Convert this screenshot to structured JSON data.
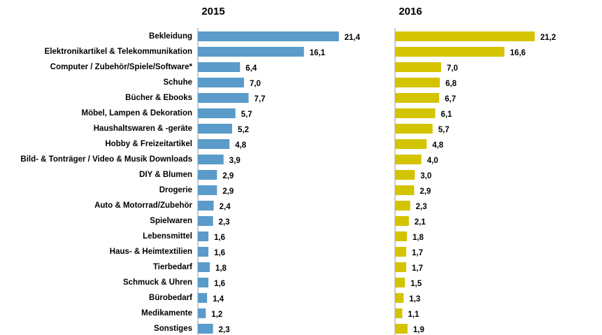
{
  "chart_data": {
    "type": "bar",
    "orientation": "horizontal",
    "categories": [
      "Bekleidung",
      "Elektronikartikel & Telekommunikation",
      "Computer / Zubehör/Spiele/Software*",
      "Schuhe",
      "Bücher & Ebooks",
      "Möbel, Lampen & Dekoration",
      "Haushaltswaren & -geräte",
      "Hobby & Freizeitartikel",
      "Bild- & Tonträger / Video & Musik Downloads",
      "DIY & Blumen",
      "Drogerie",
      "Auto & Motorrad/Zubehör",
      "Spielwaren",
      "Lebensmittel",
      "Haus- & Heimtextilien",
      "Tierbedarf",
      "Schmuck & Uhren",
      "Bürobedarf",
      "Medikamente",
      "Sonstiges"
    ],
    "series": [
      {
        "name": "2015",
        "color": "#5a9bc9",
        "values": [
          21.4,
          16.1,
          6.4,
          7.0,
          7.7,
          5.7,
          5.2,
          4.8,
          3.9,
          2.9,
          2.9,
          2.4,
          2.3,
          1.6,
          1.6,
          1.8,
          1.6,
          1.4,
          1.2,
          2.3
        ],
        "value_labels": [
          "21,4",
          "16,1",
          "6,4",
          "7,0",
          "7,7",
          "5,7",
          "5,2",
          "4,8",
          "3,9",
          "2,9",
          "2,9",
          "2,4",
          "2,3",
          "1,6",
          "1,6",
          "1,8",
          "1,6",
          "1,4",
          "1,2",
          "2,3"
        ]
      },
      {
        "name": "2016",
        "color": "#d4c400",
        "values": [
          21.2,
          16.6,
          7.0,
          6.8,
          6.7,
          6.1,
          5.7,
          4.8,
          4.0,
          3.0,
          2.9,
          2.3,
          2.1,
          1.8,
          1.7,
          1.7,
          1.5,
          1.3,
          1.1,
          1.9
        ],
        "value_labels": [
          "21,2",
          "16,6",
          "7,0",
          "6,8",
          "6,7",
          "6,1",
          "5,7",
          "4,8",
          "4,0",
          "3,0",
          "2,9",
          "2,3",
          "2,1",
          "1,8",
          "1,7",
          "1,7",
          "1,5",
          "1,3",
          "1,1",
          "1,9"
        ]
      }
    ],
    "xlim": [
      0,
      22.5
    ]
  }
}
